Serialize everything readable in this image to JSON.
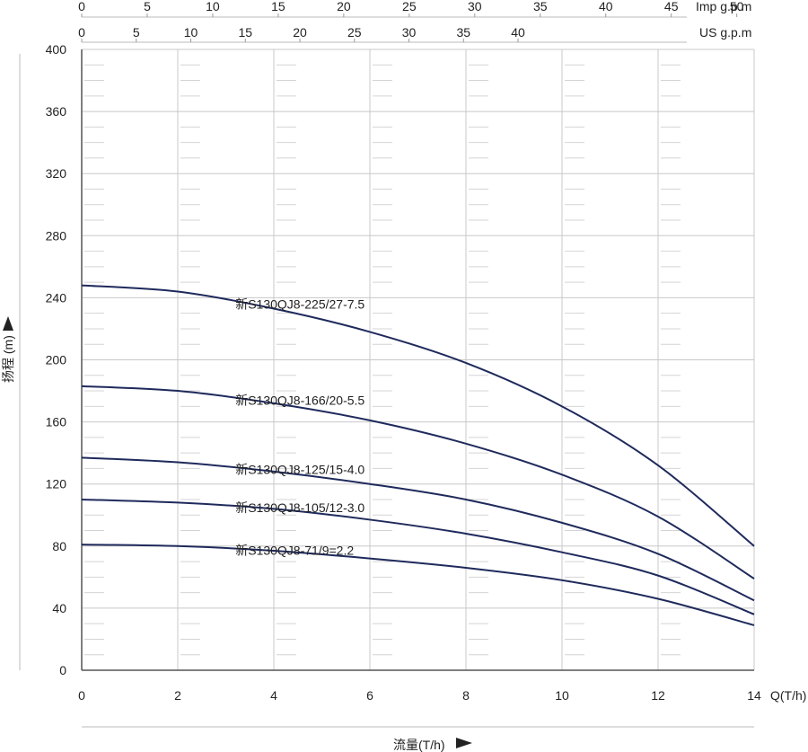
{
  "chart_data": {
    "type": "line",
    "x_axis": {
      "label": "Q(T/h)",
      "min": 0,
      "max": 14,
      "ticks": [
        0,
        2,
        4,
        6,
        8,
        10,
        12,
        14
      ]
    },
    "x_axis_top_imp": {
      "label": "Imp g.p.m",
      "ticks": [
        0,
        5,
        10,
        15,
        20,
        25,
        30,
        35,
        40,
        45,
        50
      ]
    },
    "x_axis_top_us": {
      "label": "US g.p.m",
      "ticks": [
        0,
        5,
        10,
        15,
        20,
        25,
        30,
        35,
        40
      ]
    },
    "y_axis": {
      "label": "扬程 (m)",
      "min": 0,
      "max": 400,
      "ticks": [
        0,
        40,
        80,
        120,
        160,
        200,
        240,
        280,
        320,
        360,
        400
      ],
      "minor_step": 10
    },
    "bottom_label": "流量(T/h)",
    "grid": true,
    "series": [
      {
        "name": "新S130QJ8-225/27-7.5",
        "x": [
          0,
          2,
          4,
          6,
          8,
          10,
          12,
          14
        ],
        "y": [
          248,
          244,
          233,
          218,
          198,
          170,
          132,
          80
        ]
      },
      {
        "name": "新S130QJ8-166/20-5.5",
        "x": [
          0,
          2,
          4,
          6,
          8,
          10,
          12,
          14
        ],
        "y": [
          183,
          180,
          172,
          161,
          146,
          126,
          99,
          59
        ]
      },
      {
        "name": "新S130QJ8-125/15-4.0",
        "x": [
          0,
          2,
          4,
          6,
          8,
          10,
          12,
          14
        ],
        "y": [
          137,
          134,
          128,
          120,
          110,
          95,
          75,
          45
        ]
      },
      {
        "name": "新S130QJ8-105/12-3.0",
        "x": [
          0,
          2,
          4,
          6,
          8,
          10,
          12,
          14
        ],
        "y": [
          110,
          108,
          104,
          97,
          88,
          76,
          61,
          36
        ]
      },
      {
        "name": "新S130QJ8-71/9=2.2",
        "x": [
          0,
          2,
          4,
          6,
          8,
          10,
          12,
          14
        ],
        "y": [
          81,
          80,
          77,
          72,
          66,
          58,
          46,
          29
        ]
      }
    ],
    "colors": {
      "line": "#1f2a5c",
      "grid": "#c8c8c8",
      "axis": "#555555"
    }
  }
}
